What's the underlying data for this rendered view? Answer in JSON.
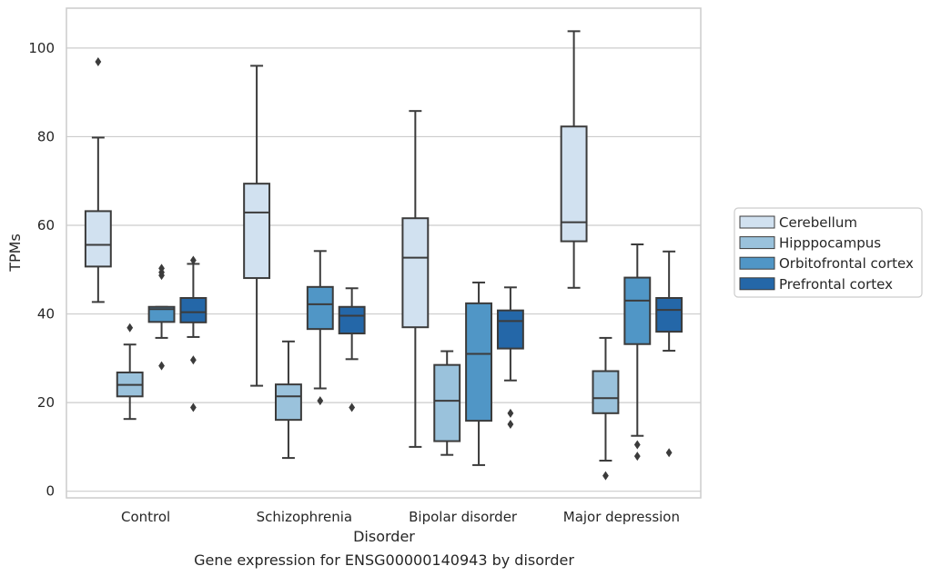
{
  "chart_data": {
    "type": "box",
    "title": "",
    "caption": "Gene expression for ENSG00000140943 by disorder",
    "xlabel": "Disorder",
    "ylabel": "TPMs",
    "ylim": [
      -1.5,
      109
    ],
    "yticks": [
      0,
      20,
      40,
      60,
      80,
      100
    ],
    "grid": true,
    "legend_position": "right",
    "categories": [
      "Control",
      "Schizophrenia",
      "Bipolar disorder",
      "Major depression"
    ],
    "series": [
      {
        "name": "Cerebellum",
        "color": "#d1e1f0",
        "boxes": [
          {
            "whislo": 42.7,
            "q1": 50.7,
            "med": 55.6,
            "q3": 63.2,
            "whishi": 79.8,
            "fliers": [
              96.9
            ]
          },
          {
            "whislo": 23.8,
            "q1": 48.1,
            "med": 62.9,
            "q3": 69.4,
            "whishi": 96.0,
            "fliers": []
          },
          {
            "whislo": 10.0,
            "q1": 37.0,
            "med": 52.7,
            "q3": 61.6,
            "whishi": 85.8,
            "fliers": []
          },
          {
            "whislo": 45.9,
            "q1": 56.4,
            "med": 60.7,
            "q3": 82.3,
            "whishi": 103.8,
            "fliers": []
          }
        ]
      },
      {
        "name": "Hipppocampus",
        "color": "#9ac2dc",
        "boxes": [
          {
            "whislo": 16.3,
            "q1": 21.4,
            "med": 24.0,
            "q3": 26.8,
            "whishi": 33.1,
            "fliers": [
              36.9
            ]
          },
          {
            "whislo": 7.5,
            "q1": 16.1,
            "med": 21.4,
            "q3": 24.1,
            "whishi": 33.8,
            "fliers": []
          },
          {
            "whislo": 8.2,
            "q1": 11.3,
            "med": 20.4,
            "q3": 28.5,
            "whishi": 31.6,
            "fliers": []
          },
          {
            "whislo": 6.9,
            "q1": 17.6,
            "med": 21.0,
            "q3": 27.1,
            "whishi": 34.6,
            "fliers": [
              3.5
            ]
          }
        ]
      },
      {
        "name": "Orbitofrontal cortex",
        "color": "#5096c6",
        "boxes": [
          {
            "whislo": 34.6,
            "q1": 38.2,
            "med": 41.1,
            "q3": 41.6,
            "whishi": 41.6,
            "fliers": [
              50.3,
              49.4,
              48.7,
              28.3
            ]
          },
          {
            "whislo": 23.2,
            "q1": 36.6,
            "med": 42.2,
            "q3": 46.1,
            "whishi": 54.2,
            "fliers": [
              20.4
            ]
          },
          {
            "whislo": 5.9,
            "q1": 15.9,
            "med": 31.0,
            "q3": 42.4,
            "whishi": 47.1,
            "fliers": []
          },
          {
            "whislo": 12.5,
            "q1": 33.2,
            "med": 43.0,
            "q3": 48.2,
            "whishi": 55.7,
            "fliers": [
              10.5,
              7.9
            ]
          }
        ]
      },
      {
        "name": "Prefrontal cortex",
        "color": "#2467a8",
        "boxes": [
          {
            "whislo": 34.8,
            "q1": 38.1,
            "med": 40.4,
            "q3": 43.6,
            "whishi": 51.3,
            "fliers": [
              52.1,
              29.6,
              18.9
            ]
          },
          {
            "whislo": 29.8,
            "q1": 35.6,
            "med": 39.6,
            "q3": 41.6,
            "whishi": 45.8,
            "fliers": [
              18.9
            ]
          },
          {
            "whislo": 25.0,
            "q1": 32.2,
            "med": 38.4,
            "q3": 40.8,
            "whishi": 46.0,
            "fliers": [
              17.6,
              15.1
            ]
          },
          {
            "whislo": 31.7,
            "q1": 36.0,
            "med": 40.9,
            "q3": 43.6,
            "whishi": 54.1,
            "fliers": [
              8.7
            ]
          }
        ]
      }
    ]
  }
}
